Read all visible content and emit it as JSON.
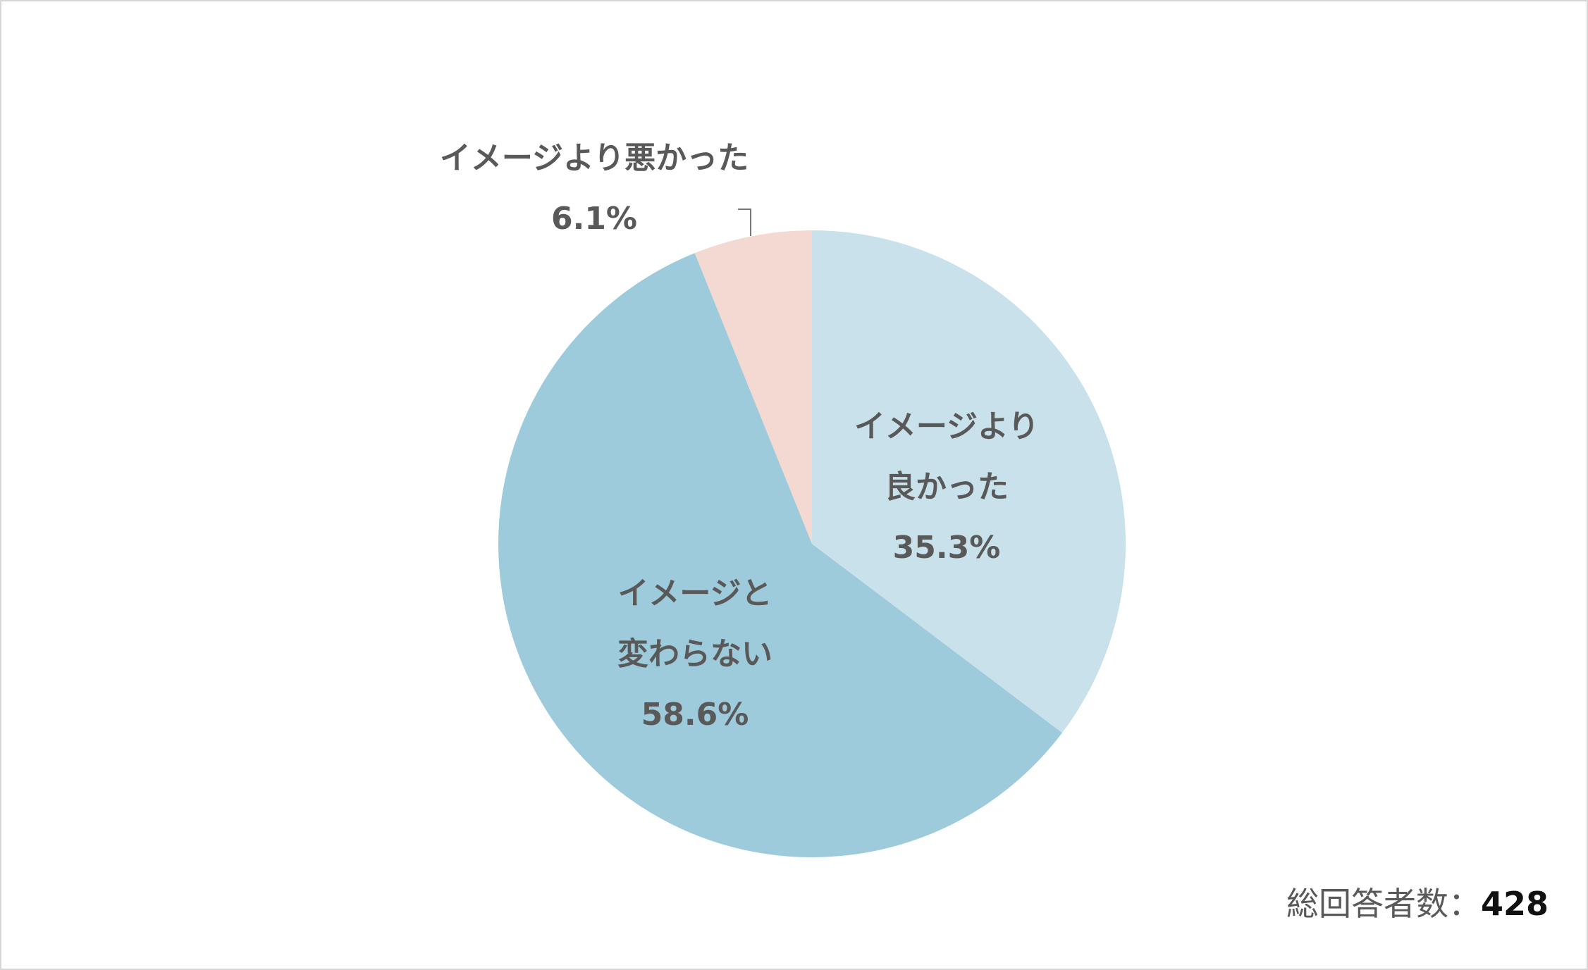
{
  "chart_data": {
    "type": "pie",
    "categories": [
      "イメージより良かった",
      "イメージと変わらない",
      "イメージより悪かった"
    ],
    "values": [
      35.3,
      58.6,
      6.1
    ],
    "value_labels": [
      "35.3%",
      "58.6%",
      "6.1%"
    ],
    "colors": [
      "#c8e1ea",
      "#9ecbdb",
      "#f3d9d2"
    ],
    "total_label": "総回答者数：",
    "total": 428
  }
}
